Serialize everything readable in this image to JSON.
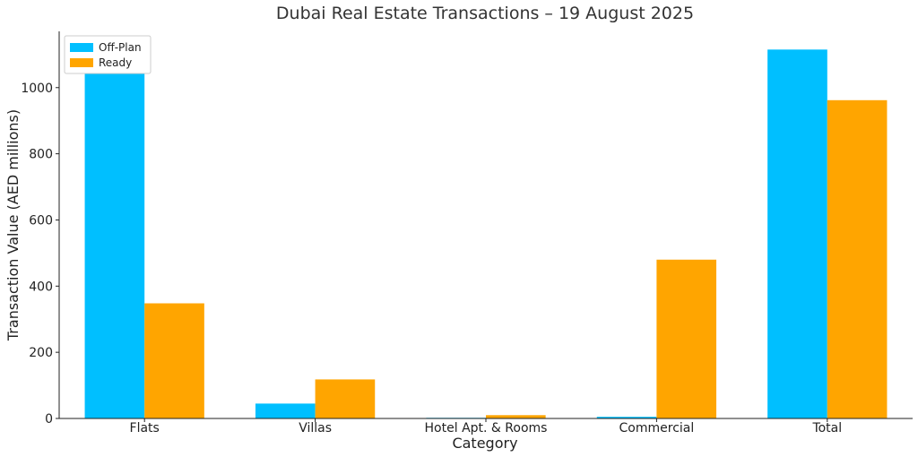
{
  "chart_data": {
    "type": "bar",
    "title": "Dubai Real Estate Transactions – 19 August 2025",
    "xlabel": "Category",
    "ylabel": "Transaction Value (AED millions)",
    "categories": [
      "Flats",
      "Villas",
      "Hotel Apt. & Rooms",
      "Commercial",
      "Total"
    ],
    "series": [
      {
        "name": "Off-Plan",
        "color": "#00bfff",
        "values": [
          1055,
          45,
          2,
          5,
          1115
        ]
      },
      {
        "name": "Ready",
        "color": "#ffa500",
        "values": [
          348,
          118,
          10,
          480,
          962
        ]
      }
    ],
    "ylim": [
      0,
      1170
    ],
    "yticks": [
      0,
      200,
      400,
      600,
      800,
      1000
    ],
    "legend": {
      "position": "top-left"
    },
    "grid": false
  }
}
